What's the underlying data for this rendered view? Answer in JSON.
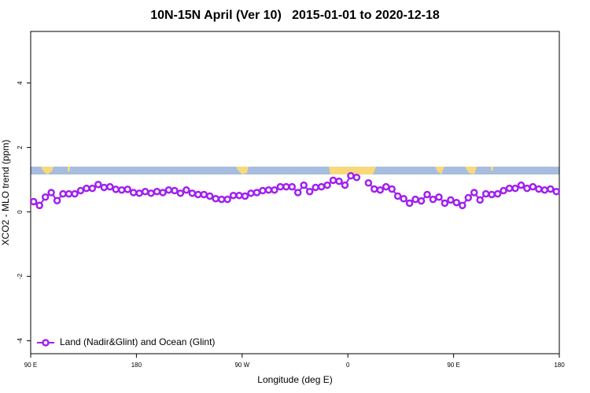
{
  "chart_data": {
    "type": "line",
    "title": "10N-15N April (Ver 10)   2015-01-01 to 2020-12-18",
    "x_label": "Longitude (deg E)",
    "y_label": "XCO2 - MLO trend (ppm)",
    "xlim": [
      90,
      540
    ],
    "xticks": [
      {
        "value": 90,
        "label": "90 E"
      },
      180,
      {
        "value": 270,
        "label": "90 W"
      },
      {
        "value": 360,
        "label": "0"
      },
      {
        "value": 450,
        "label": "90 E"
      },
      {
        "value": 540,
        "label": "180"
      }
    ],
    "ylim": [
      -4.4,
      5.6
    ],
    "yticks": [
      -4,
      -2,
      0,
      2,
      4
    ],
    "grid": false,
    "legend": "bottom-left",
    "x": [
      92.5,
      97.5,
      102.5,
      107.5,
      112.5,
      117.5,
      122.5,
      127.5,
      132.5,
      137.5,
      142.5,
      147.5,
      152.5,
      157.5,
      162.5,
      167.5,
      172.5,
      177.5,
      182.5,
      187.5,
      192.5,
      197.5,
      202.5,
      207.5,
      212.5,
      217.5,
      222.5,
      227.5,
      232.5,
      237.5,
      242.5,
      247.5,
      252.5,
      257.5,
      262.5,
      267.5,
      272.5,
      277.5,
      282.5,
      287.5,
      292.5,
      297.5,
      302.5,
      307.5,
      312.5,
      317.5,
      322.5,
      327.5,
      332.5,
      337.5,
      342.5,
      347.5,
      352.5,
      357.5,
      362.5,
      367.5,
      372.5,
      377.5,
      382.5,
      387.5,
      392.5,
      397.5,
      402.5,
      407.5,
      412.5,
      417.5,
      422.5,
      427.5,
      432.5,
      437.5,
      442.5,
      447.5,
      452.5,
      457.5,
      462.5,
      467.5,
      472.5,
      477.5,
      482.5,
      487.5,
      492.5,
      497.5,
      502.5,
      507.5,
      512.5,
      517.5,
      522.5,
      527.5,
      532.5,
      537.5
    ],
    "series": [
      {
        "name": "Land (Nadir&Glint) and Ocean (Glint)",
        "color": "#a020f0",
        "values": [
          0.32,
          0.2,
          0.46,
          0.6,
          0.35,
          0.56,
          0.56,
          0.56,
          0.66,
          0.73,
          0.73,
          0.85,
          0.76,
          0.78,
          0.7,
          0.68,
          0.7,
          0.6,
          0.58,
          0.63,
          0.58,
          0.63,
          0.6,
          0.68,
          0.66,
          0.58,
          0.68,
          0.58,
          0.54,
          0.54,
          0.49,
          0.41,
          0.39,
          0.39,
          0.51,
          0.51,
          0.49,
          0.58,
          0.6,
          0.66,
          0.68,
          0.68,
          0.78,
          0.78,
          0.78,
          0.6,
          0.83,
          0.63,
          0.76,
          0.78,
          0.83,
          0.98,
          0.95,
          0.83,
          1.12,
          1.07,
          null,
          0.9,
          0.71,
          0.68,
          0.78,
          0.71,
          0.49,
          0.41,
          0.27,
          0.39,
          0.34,
          0.54,
          0.39,
          0.46,
          0.27,
          0.37,
          0.29,
          0.2,
          0.44,
          0.6,
          0.37,
          0.56,
          0.54,
          0.56,
          0.66,
          0.73,
          0.73,
          0.83,
          0.73,
          0.78,
          0.71,
          0.68,
          0.71,
          0.63
        ]
      }
    ]
  }
}
